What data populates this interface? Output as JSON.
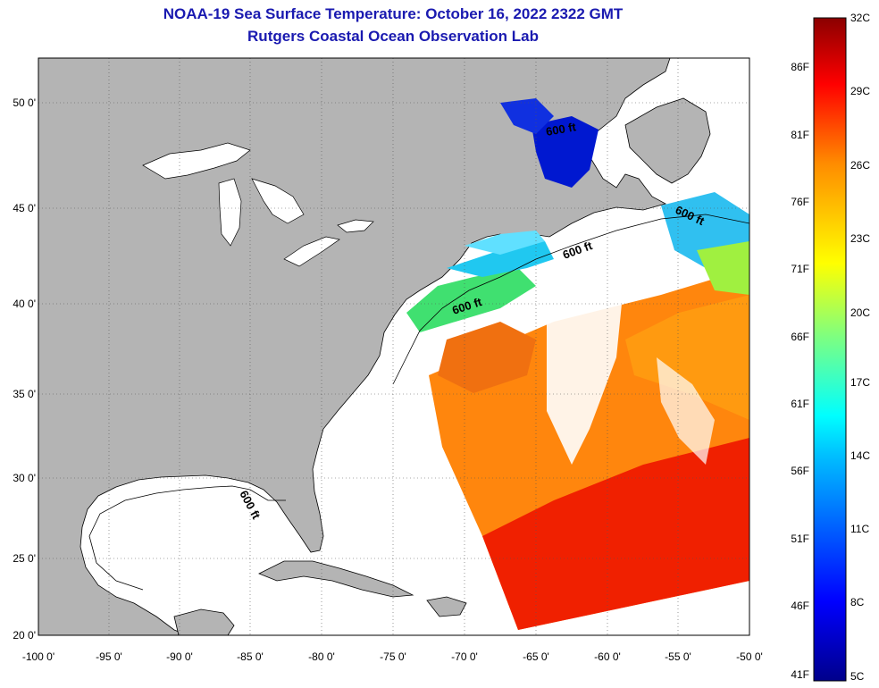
{
  "title": "NOAA-19 Sea Surface Temperature:  October 16, 2022 2322 GMT",
  "subtitle": "Rutgers Coastal Ocean Observation Lab",
  "lat_ticks": [
    "50 0'",
    "45 0'",
    "40 0'",
    "35 0'",
    "30 0'",
    "25 0'",
    "20 0'"
  ],
  "lon_ticks": [
    "-100 0'",
    "-95 0'",
    "-90 0'",
    "-85 0'",
    "-80 0'",
    "-75 0'",
    "-70 0'",
    "-65 0'",
    "-60 0'",
    "-55 0'",
    "-50 0'"
  ],
  "depth_contour_label": "600 ft",
  "colorbar": {
    "fahrenheit": [
      "86F",
      "81F",
      "76F",
      "71F",
      "66F",
      "61F",
      "56F",
      "51F",
      "46F",
      "41F"
    ],
    "celsius": [
      "32C",
      "29C",
      "26C",
      "23C",
      "20C",
      "17C",
      "14C",
      "11C",
      "8C",
      "5C"
    ]
  },
  "colors": {
    "land": "#b4b4b4",
    "title": "#1a1ab0",
    "cold": "#00008b",
    "warm": "#8b0000"
  }
}
